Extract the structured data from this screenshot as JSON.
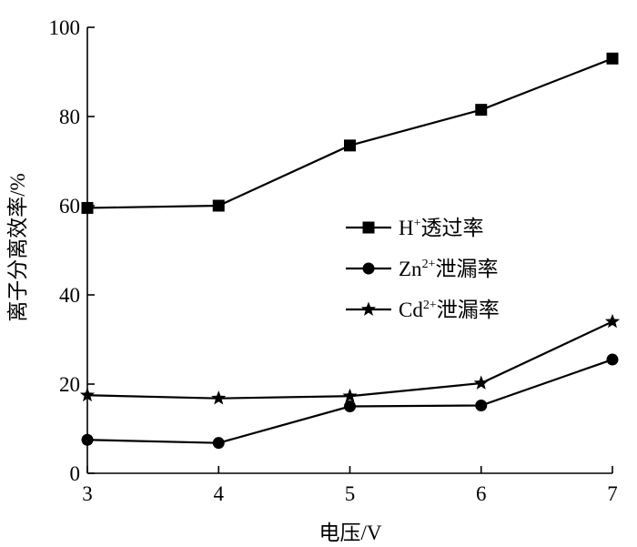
{
  "chart_data": {
    "type": "line",
    "xlabel": "电压/V",
    "ylabel": "离子分离效率/%",
    "xlim": [
      3,
      7
    ],
    "ylim": [
      0,
      100
    ],
    "x_ticks": [
      3,
      4,
      5,
      6,
      7
    ],
    "y_ticks": [
      0,
      20,
      40,
      60,
      80,
      100
    ],
    "x": [
      3,
      4,
      5,
      6,
      7
    ],
    "grid": false,
    "legend_position": "right",
    "series": [
      {
        "name": "H⁺透过率",
        "label_base": "H",
        "label_sup": "+",
        "label_rest": "透过率",
        "marker": "square",
        "values": [
          59.5,
          60,
          73.5,
          81.5,
          93
        ]
      },
      {
        "name": "Zn²⁺泄漏率",
        "label_base": "Zn",
        "label_sup": "2+",
        "label_rest": "泄漏率",
        "marker": "circle",
        "values": [
          7.5,
          6.8,
          15,
          15.2,
          25.5
        ]
      },
      {
        "name": "Cd²⁺泄漏率",
        "label_base": "Cd",
        "label_sup": "2+",
        "label_rest": "泄漏率",
        "marker": "star",
        "values": [
          17.5,
          16.8,
          17.3,
          20.2,
          34
        ]
      }
    ]
  }
}
